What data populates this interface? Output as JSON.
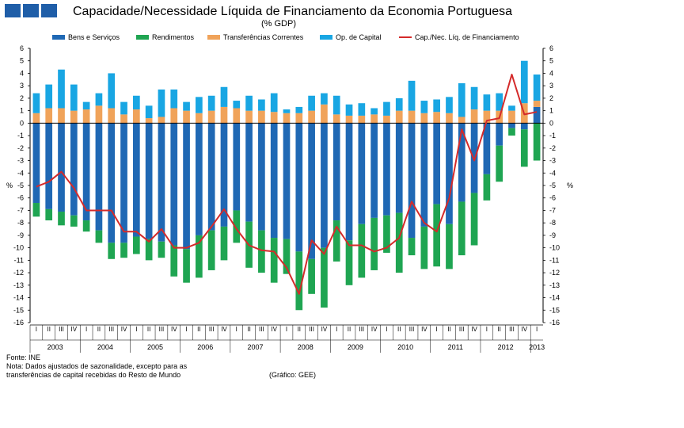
{
  "header": {
    "title": "Capacidade/Necessidade Líquida de Financiamento da Economia Portuguesa",
    "subtitle": "(% GDP)"
  },
  "footer": {
    "source": "Fonte: INE",
    "note_line1": "Nota: Dados ajustados de sazonalidade, excepto para as",
    "note_line2": "transferências de capital recebidas do Resto de Mundo",
    "credit": "(Gráfico: GEE)"
  },
  "colors": {
    "bens": "#1f68b4",
    "rend": "#1fa552",
    "transf": "#f0a35a",
    "opcap": "#19a6e3",
    "line": "#d42a2a",
    "logo": "#1f5ea8"
  },
  "chart_data": {
    "type": "bar",
    "title": "Capacidade/Necessidade Líquida de Financiamento da Economia Portuguesa",
    "subtitle": "(% GDP)",
    "ylabel_left": "%",
    "ylabel_right": "%",
    "ylim": [
      -16,
      6
    ],
    "yticks": [
      6,
      5,
      4,
      3,
      2,
      1,
      0,
      -1,
      -2,
      -3,
      -4,
      -5,
      -6,
      -7,
      -8,
      -9,
      -10,
      -11,
      -12,
      -13,
      -14,
      -15,
      -16
    ],
    "stacked": true,
    "quarter_labels": [
      "I",
      "II",
      "III",
      "IV"
    ],
    "years": [
      "2003",
      "2004",
      "2005",
      "2006",
      "2007",
      "2008",
      "2009",
      "2010",
      "2011",
      "2012",
      "2013"
    ],
    "legend": [
      "Bens e Serviços",
      "Rendimentos",
      "Transferências Correntes",
      "Op. de Capital",
      "Cap./Nec. Líq. de Financiamento"
    ],
    "categories": [
      "2003 I",
      "2003 II",
      "2003 III",
      "2003 IV",
      "2004 I",
      "2004 II",
      "2004 III",
      "2004 IV",
      "2005 I",
      "2005 II",
      "2005 III",
      "2005 IV",
      "2006 I",
      "2006 II",
      "2006 III",
      "2006 IV",
      "2007 I",
      "2007 II",
      "2007 III",
      "2007 IV",
      "2008 I",
      "2008 II",
      "2008 III",
      "2008 IV",
      "2009 I",
      "2009 II",
      "2009 III",
      "2009 IV",
      "2010 I",
      "2010 II",
      "2010 III",
      "2010 IV",
      "2011 I",
      "2011 II",
      "2011 III",
      "2011 IV",
      "2012 I",
      "2012 II",
      "2012 III",
      "2012 IV",
      "2013 I"
    ],
    "series": [
      {
        "name": "Bens e Serviços",
        "type": "bar",
        "values": [
          -6.4,
          -6.9,
          -7.1,
          -7.4,
          -7.8,
          -8.6,
          -9.6,
          -9.6,
          -9.1,
          -9.3,
          -9.5,
          -9.8,
          -10.1,
          -9.0,
          -8.6,
          -8.3,
          -7.0,
          -7.9,
          -8.6,
          -9.2,
          -9.3,
          -10.3,
          -10.9,
          -10.0,
          -7.8,
          -9.4,
          -8.1,
          -7.6,
          -7.4,
          -7.2,
          -9.2,
          -8.3,
          -6.5,
          -8.1,
          -6.3,
          -5.6,
          -4.1,
          -1.8,
          -0.4,
          -0.5,
          1.3
        ]
      },
      {
        "name": "Rendimentos",
        "type": "bar",
        "values": [
          -1.1,
          -0.9,
          -1.1,
          -0.9,
          -0.9,
          -1.0,
          -1.3,
          -1.2,
          -1.4,
          -1.7,
          -1.3,
          -2.5,
          -2.7,
          -3.4,
          -3.2,
          -2.7,
          -2.6,
          -3.7,
          -3.4,
          -3.6,
          -2.8,
          -4.7,
          -2.8,
          -4.8,
          -3.3,
          -3.6,
          -4.3,
          -4.2,
          -3.0,
          -4.8,
          -1.4,
          -3.4,
          -5.0,
          -3.6,
          -4.3,
          -4.2,
          -2.1,
          -2.9,
          -0.6,
          -3.0,
          -3.0
        ]
      },
      {
        "name": "Transferências Correntes",
        "type": "bar",
        "values": [
          0.8,
          1.2,
          1.2,
          1.0,
          1.1,
          1.4,
          1.2,
          0.7,
          1.1,
          0.4,
          0.5,
          1.2,
          1.0,
          0.8,
          1.0,
          1.3,
          1.2,
          1.0,
          1.0,
          0.9,
          0.8,
          0.8,
          1.0,
          1.5,
          0.7,
          0.6,
          0.6,
          0.7,
          0.6,
          1.0,
          1.0,
          0.8,
          0.9,
          0.8,
          0.5,
          1.1,
          1.0,
          1.0,
          1.0,
          1.6,
          0.5
        ]
      },
      {
        "name": "Op. de Capital",
        "type": "bar",
        "values": [
          1.6,
          1.9,
          3.1,
          2.1,
          0.6,
          1.0,
          2.8,
          1.0,
          1.1,
          1.0,
          2.2,
          1.5,
          0.7,
          1.3,
          1.2,
          1.6,
          0.6,
          1.2,
          0.9,
          1.5,
          0.3,
          0.5,
          1.2,
          0.9,
          1.5,
          0.9,
          1.0,
          0.5,
          1.1,
          1.0,
          2.4,
          1.0,
          1.0,
          1.3,
          2.7,
          1.8,
          1.3,
          1.4,
          0.4,
          3.4,
          2.1
        ]
      },
      {
        "name": "Cap./Nec. Líq. de Financiamento",
        "type": "line",
        "values": [
          -5.1,
          -4.7,
          -3.9,
          -5.2,
          -7.0,
          -7.0,
          -7.0,
          -8.7,
          -8.7,
          -9.5,
          -8.5,
          -10.0,
          -10.0,
          -9.6,
          -8.3,
          -6.9,
          -8.5,
          -9.8,
          -10.2,
          -10.3,
          -11.6,
          -13.7,
          -9.4,
          -10.5,
          -8.3,
          -9.8,
          -9.8,
          -10.3,
          -10.0,
          -9.2,
          -6.3,
          -8.0,
          -8.7,
          -6.0,
          -0.5,
          -3.0,
          0.2,
          0.4,
          3.9,
          0.7,
          0.9
        ]
      }
    ]
  }
}
